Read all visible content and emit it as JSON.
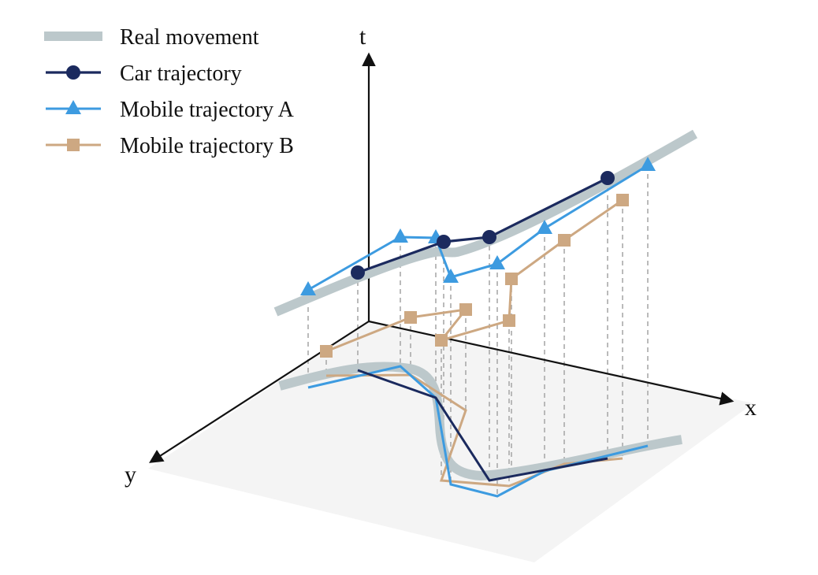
{
  "legend": {
    "real": "Real movement",
    "car": "Car trajectory",
    "mobile_a": "Mobile trajectory A",
    "mobile_b": "Mobile trajectory B"
  },
  "axes": {
    "t": "t",
    "x": "x",
    "y": "y"
  },
  "colors": {
    "real": "#bcc8cb",
    "car": "#1b2a5e",
    "mobile_a": "#3d9be0",
    "mobile_b": "#cda882",
    "plane": "#f4f4f4",
    "dash": "#aaaaaa",
    "axis": "#111111"
  }
}
